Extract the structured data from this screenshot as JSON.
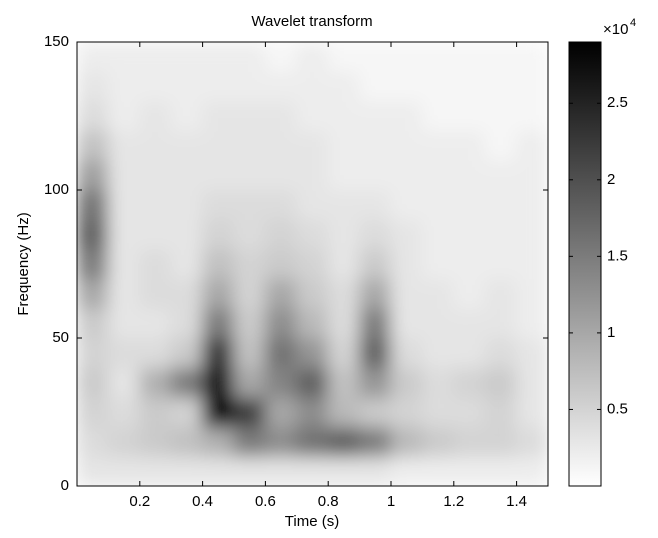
{
  "chart_data": {
    "type": "heatmap",
    "title": "Wavelet transform",
    "xlabel": "Time (s)",
    "ylabel": "Frequency (Hz)",
    "xlim": [
      0,
      1.5
    ],
    "ylim": [
      0,
      150
    ],
    "xticks": [
      0.2,
      0.4,
      0.6,
      0.8,
      1,
      1.2,
      1.4
    ],
    "yticks": [
      0,
      50,
      100,
      150
    ],
    "xbins": [
      0,
      0.1,
      0.2,
      0.3,
      0.4,
      0.5,
      0.6,
      0.7,
      0.8,
      0.9,
      1.0,
      1.1,
      1.2,
      1.3,
      1.4,
      1.5
    ],
    "ybins": [
      0,
      10,
      20,
      30,
      40,
      50,
      60,
      70,
      80,
      90,
      100,
      110,
      120,
      130,
      140,
      150
    ],
    "values": [
      [
        0.3,
        0.3,
        0.3,
        0.3,
        0.3,
        0.3,
        0.3,
        0.3,
        0.3,
        0.3,
        0.2,
        0.2,
        0.2,
        0.2,
        0.2
      ],
      [
        0.4,
        0.5,
        0.6,
        0.7,
        0.9,
        1.5,
        1.3,
        1.6,
        1.8,
        1.5,
        0.8,
        0.6,
        0.5,
        0.5,
        0.4
      ],
      [
        0.5,
        0.4,
        0.6,
        0.5,
        2.9,
        2.2,
        1.0,
        1.3,
        0.8,
        0.6,
        0.5,
        0.4,
        0.4,
        0.5,
        0.3
      ],
      [
        0.6,
        0.3,
        0.9,
        1.5,
        2.7,
        1.0,
        1.4,
        1.8,
        0.7,
        1.2,
        0.6,
        0.4,
        0.5,
        0.6,
        0.3
      ],
      [
        0.5,
        0.4,
        0.4,
        0.6,
        2.3,
        0.7,
        1.6,
        1.2,
        0.5,
        1.8,
        0.4,
        0.3,
        0.3,
        0.4,
        0.3
      ],
      [
        0.6,
        0.3,
        0.3,
        0.4,
        1.5,
        0.6,
        1.3,
        0.8,
        0.4,
        1.5,
        0.3,
        0.3,
        0.3,
        0.3,
        0.2
      ],
      [
        1.0,
        0.3,
        0.4,
        0.4,
        1.0,
        0.5,
        1.0,
        0.6,
        0.4,
        1.0,
        0.3,
        0.3,
        0.2,
        0.3,
        0.2
      ],
      [
        1.5,
        0.3,
        0.4,
        0.3,
        0.7,
        0.5,
        0.6,
        0.5,
        0.3,
        0.6,
        0.3,
        0.2,
        0.2,
        0.2,
        0.2
      ],
      [
        1.8,
        0.3,
        0.3,
        0.3,
        0.5,
        0.4,
        0.5,
        0.4,
        0.3,
        0.4,
        0.3,
        0.2,
        0.2,
        0.2,
        0.2
      ],
      [
        1.6,
        0.3,
        0.3,
        0.3,
        0.4,
        0.4,
        0.4,
        0.3,
        0.3,
        0.3,
        0.2,
        0.2,
        0.2,
        0.2,
        0.2
      ],
      [
        1.1,
        0.3,
        0.3,
        0.3,
        0.3,
        0.3,
        0.3,
        0.3,
        0.2,
        0.2,
        0.2,
        0.2,
        0.2,
        0.2,
        0.2
      ],
      [
        0.7,
        0.3,
        0.3,
        0.3,
        0.3,
        0.3,
        0.3,
        0.3,
        0.2,
        0.2,
        0.2,
        0.2,
        0.2,
        0.1,
        0.2
      ],
      [
        0.4,
        0.2,
        0.3,
        0.2,
        0.3,
        0.3,
        0.3,
        0.2,
        0.2,
        0.2,
        0.2,
        0.1,
        0.1,
        0.1,
        0.1
      ],
      [
        0.3,
        0.2,
        0.2,
        0.2,
        0.2,
        0.2,
        0.2,
        0.2,
        0.2,
        0.1,
        0.1,
        0.1,
        0.1,
        0.1,
        0.1
      ],
      [
        0.2,
        0.2,
        0.2,
        0.2,
        0.2,
        0.2,
        0.1,
        0.2,
        0.1,
        0.1,
        0.1,
        0.1,
        0.1,
        0.1,
        0.1
      ]
    ],
    "colormap": "gray_r",
    "clim": [
      0,
      2.9
    ],
    "cticks": [
      0.5,
      1,
      1.5,
      2,
      2.5
    ],
    "colorbar_label": "×10",
    "colorbar_exponent": "4"
  }
}
